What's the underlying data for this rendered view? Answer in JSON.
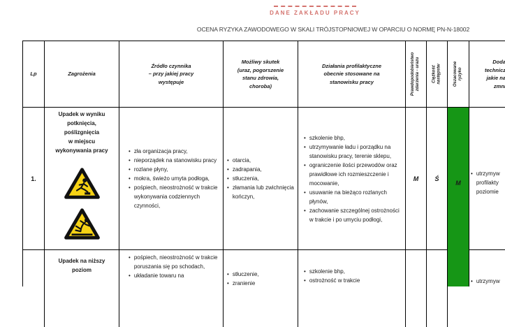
{
  "page": {
    "letterhead": "DANE ZAKŁADU PRACY",
    "title": "OCENA RYZYKA ZAWODOWEGO W SKALI TRÓJSTOPNIOWEJ W OPARCIU O NORMĘ PN-N-18002",
    "colors": {
      "accent": "#d4736e",
      "risk_green": "#169616",
      "warning_yellow": "#f6d214"
    }
  },
  "table": {
    "headers": {
      "lp": "Lp",
      "hazard": "Zagrożenia",
      "source": "Źródło czynnika\n– przy jakiej pracy\nwystępuje",
      "effect": "Możliwy skutek\n(uraz, pogorszenie\nstanu zdrowia,\nchoroba)",
      "prevention": "Działania profilaktyczne\nobecnie stosowane na\nstanowisku pracy",
      "probability": "Prawdopodobieństwo\nzdarzenia - urazu",
      "severity": "Ciężkość następstw",
      "risk": "Oszacowane ryzyko",
      "additional_visible_fragments": [
        "Doda",
        "technicz",
        "jakie na",
        "zmni"
      ]
    },
    "rows": [
      {
        "lp": "1.",
        "hazard": "Upadek w wyniku\npotknięcia,\npoślizgnięcia\nw miejscu\nwykonywania pracy",
        "hazard_icons": [
          "tripping-hazard-warning-triangle",
          "slippery-surface-warning-triangle"
        ],
        "source": [
          "zła organizacja pracy,",
          "nieporządek na stanowisku pracy",
          "rozlane płyny,",
          "mokra, świeżo umyta podłoga,",
          "pośpiech, nieostrożność w trakcie wykonywania codziennych czynności,"
        ],
        "effect": [
          "otarcia,",
          "zadrapania,",
          "stłuczenia,",
          "złamania lub zwichnięcia kończyn,"
        ],
        "prevention": [
          "szkolenie bhp,",
          "utrzymywanie ładu i porządku na stanowisku pracy, terenie sklepu,",
          "ograniczenie ilości przewodów oraz prawidłowe ich rozmieszczenie i mocowanie,",
          "usuwanie na bieżąco rozlanych płynów,",
          "zachowanie szczególnej ostrożności w trakcie i po umyciu podłogi,"
        ],
        "probability": "M",
        "severity": "Ś",
        "risk": "M",
        "additional_visible_fragments": [
          "utrzymyw",
          "profilakty",
          "poziomie"
        ]
      },
      {
        "lp": "",
        "hazard": "Upadek na niższy\npoziom",
        "source": [
          "pośpiech, nieostrożność w trakcie poruszania się po schodach,",
          "układanie towaru na"
        ],
        "effect": [
          "stłuczenie,",
          "zranienie"
        ],
        "prevention": [
          "szkolenie bhp,",
          "ostrożność w trakcie"
        ],
        "additional_visible_fragments": [
          "utrzymyw"
        ]
      }
    ]
  }
}
